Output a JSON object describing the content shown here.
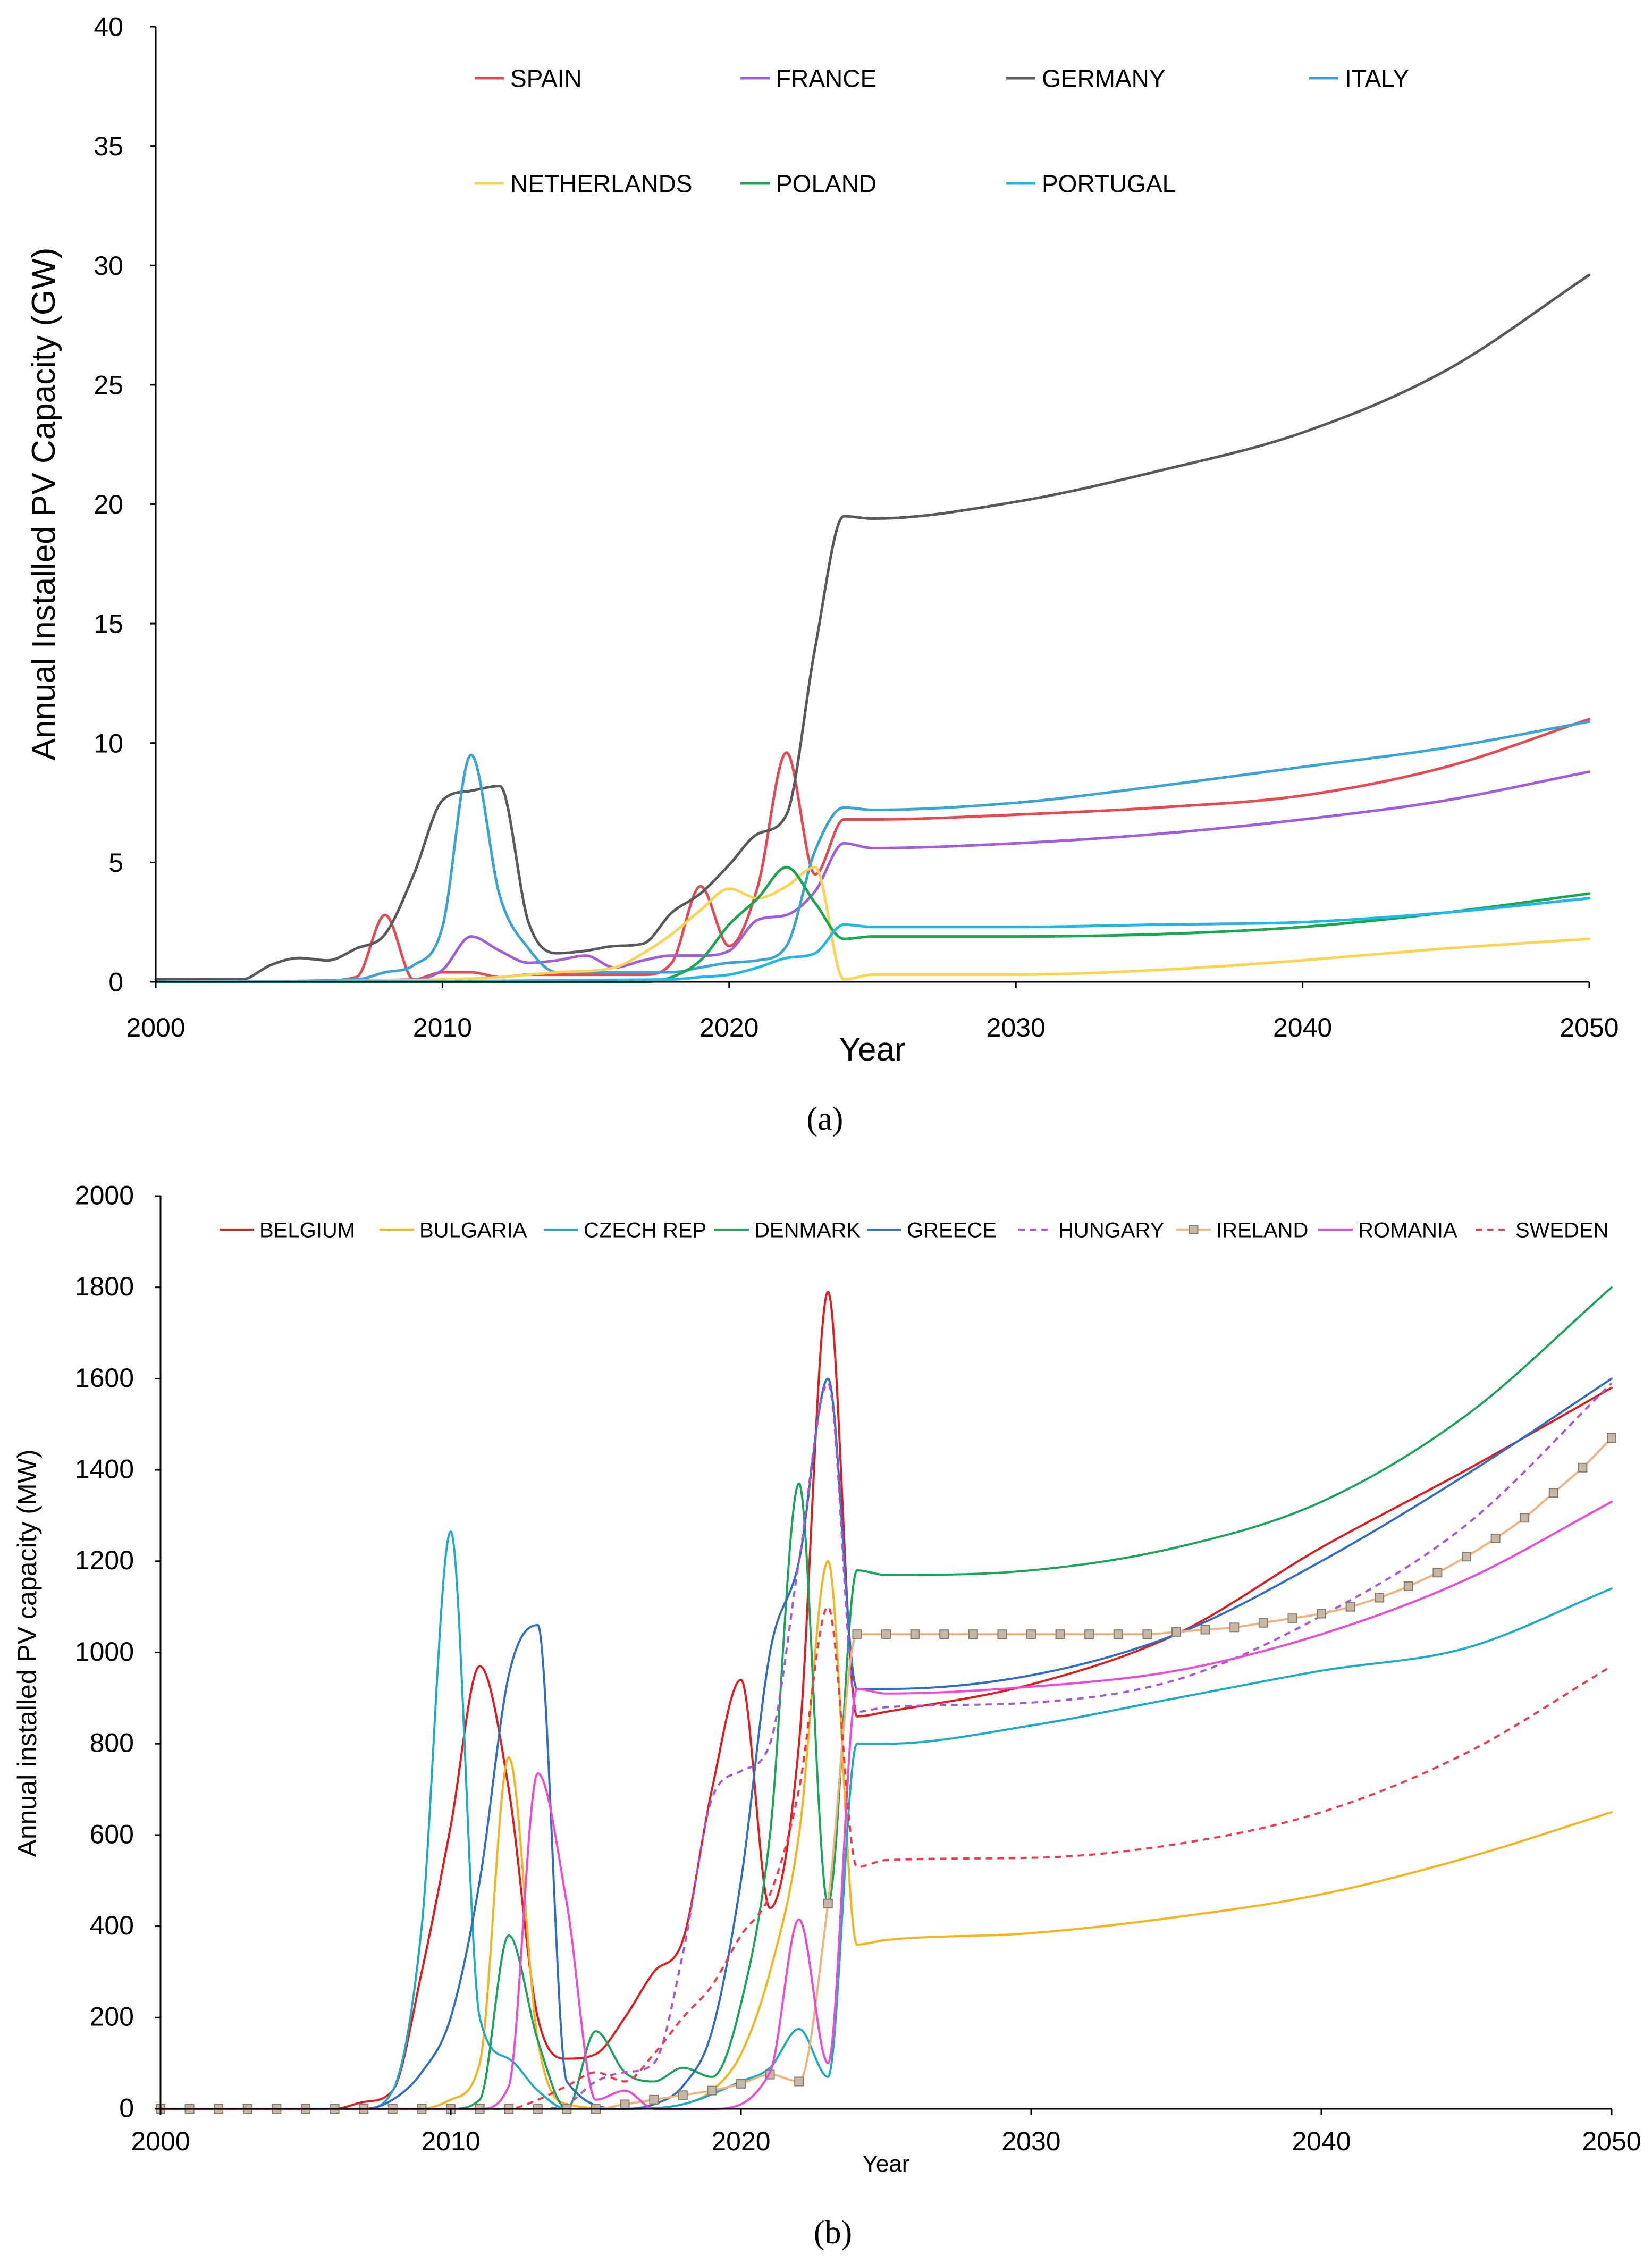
{
  "figure": {
    "caption_a": "(a)",
    "caption_b": "(b)"
  },
  "chart_data": [
    {
      "id": "a",
      "type": "line",
      "title": "",
      "xlabel": "Year",
      "ylabel": "Annual Installed PV Capacity (GW)",
      "xlim": [
        2000,
        2050
      ],
      "ylim": [
        0,
        40
      ],
      "xticks": [
        2000,
        2010,
        2020,
        2030,
        2040,
        2050
      ],
      "yticks": [
        0,
        5,
        10,
        15,
        20,
        25,
        30,
        35,
        40
      ],
      "grid": false,
      "legend_position": "top",
      "series": [
        {
          "name": "SPAIN",
          "color": "#e8484f",
          "dash": "",
          "x": [
            2000,
            2005,
            2007,
            2008,
            2009,
            2010,
            2011,
            2012,
            2013,
            2015,
            2017,
            2018,
            2019,
            2020,
            2021,
            2022,
            2023,
            2024,
            2025,
            2030,
            2035,
            2040,
            2045,
            2050
          ],
          "y": [
            0,
            0,
            0.2,
            2.8,
            0.1,
            0.4,
            0.4,
            0.2,
            0.3,
            0.3,
            0.3,
            0.8,
            4.0,
            1.5,
            4.0,
            9.6,
            4.5,
            6.8,
            6.8,
            7.0,
            7.3,
            7.8,
            9.0,
            11.0
          ]
        },
        {
          "name": "FRANCE",
          "color": "#a25ddc",
          "dash": "",
          "x": [
            2000,
            2009,
            2010,
            2011,
            2012,
            2013,
            2014,
            2015,
            2016,
            2017,
            2018,
            2019,
            2020,
            2021,
            2022,
            2023,
            2024,
            2025,
            2030,
            2035,
            2040,
            2045,
            2050
          ],
          "y": [
            0,
            0.1,
            0.5,
            1.9,
            1.3,
            0.8,
            0.9,
            1.1,
            0.6,
            0.9,
            1.1,
            1.1,
            1.3,
            2.6,
            2.8,
            3.8,
            5.8,
            5.6,
            5.8,
            6.2,
            6.8,
            7.6,
            8.8
          ]
        },
        {
          "name": "GERMANY",
          "color": "#595959",
          "dash": "",
          "x": [
            2000,
            2003,
            2004,
            2005,
            2006,
            2007,
            2008,
            2009,
            2010,
            2011,
            2012,
            2013,
            2014,
            2015,
            2016,
            2017,
            2018,
            2019,
            2020,
            2021,
            2022,
            2023,
            2024,
            2025,
            2030,
            2035,
            2040,
            2045,
            2050
          ],
          "y": [
            0.1,
            0.1,
            0.7,
            1.0,
            0.9,
            1.4,
            2.0,
            4.5,
            7.6,
            8.0,
            8.2,
            2.5,
            1.2,
            1.3,
            1.5,
            1.6,
            2.9,
            3.7,
            4.9,
            6.2,
            7.0,
            14.0,
            19.5,
            19.4,
            20.1,
            21.4,
            23.0,
            25.6,
            29.6
          ]
        },
        {
          "name": "ITALY",
          "color": "#3aa4d6",
          "dash": "",
          "x": [
            2000,
            2007,
            2008,
            2009,
            2010,
            2011,
            2012,
            2013,
            2014,
            2016,
            2018,
            2019,
            2020,
            2021,
            2022,
            2023,
            2024,
            2025,
            2030,
            2035,
            2040,
            2045,
            2050
          ],
          "y": [
            0,
            0.1,
            0.4,
            0.7,
            2.3,
            9.5,
            3.6,
            1.4,
            0.4,
            0.4,
            0.4,
            0.6,
            0.8,
            0.9,
            1.5,
            5.5,
            7.3,
            7.2,
            7.5,
            8.2,
            9.0,
            9.8,
            10.9
          ]
        },
        {
          "name": "NETHERLANDS",
          "color": "#ffd34e",
          "dash": "",
          "x": [
            2000,
            2010,
            2012,
            2014,
            2016,
            2017,
            2018,
            2019,
            2020,
            2021,
            2022,
            2023,
            2024,
            2025,
            2030,
            2035,
            2040,
            2045,
            2050
          ],
          "y": [
            0,
            0.1,
            0.2,
            0.4,
            0.6,
            1.2,
            2.0,
            3.0,
            3.9,
            3.5,
            4.0,
            4.8,
            0.1,
            0.3,
            0.3,
            0.5,
            0.9,
            1.4,
            1.8
          ]
        },
        {
          "name": "POLAND",
          "color": "#18a84f",
          "dash": "",
          "x": [
            2000,
            2017,
            2018,
            2019,
            2020,
            2021,
            2022,
            2023,
            2024,
            2025,
            2030,
            2035,
            2040,
            2045,
            2050
          ],
          "y": [
            0,
            0,
            0.2,
            0.9,
            2.4,
            3.5,
            4.8,
            3.3,
            1.8,
            1.9,
            1.9,
            2.0,
            2.3,
            2.9,
            3.7
          ]
        },
        {
          "name": "PORTUGAL",
          "color": "#1fb8e8",
          "dash": "",
          "x": [
            2000,
            2018,
            2019,
            2020,
            2021,
            2022,
            2023,
            2024,
            2025,
            2030,
            2035,
            2040,
            2045,
            2050
          ],
          "y": [
            0,
            0.1,
            0.2,
            0.3,
            0.6,
            1.0,
            1.2,
            2.4,
            2.3,
            2.3,
            2.4,
            2.5,
            2.9,
            3.5
          ]
        }
      ]
    },
    {
      "id": "b",
      "type": "line",
      "title": "",
      "xlabel": "Year",
      "ylabel": "Annual installed PV capacity (MW)",
      "xlim": [
        2000,
        2050
      ],
      "ylim": [
        0,
        2000
      ],
      "xticks": [
        2000,
        2010,
        2020,
        2030,
        2040,
        2050
      ],
      "yticks": [
        0,
        200,
        400,
        600,
        800,
        1000,
        1200,
        1400,
        1600,
        1800,
        2000
      ],
      "grid": false,
      "legend_position": "top",
      "series": [
        {
          "name": "BELGIUM",
          "color": "#e41a1c",
          "dash": "",
          "x": [
            2000,
            2006,
            2007,
            2008,
            2009,
            2010,
            2011,
            2012,
            2013,
            2014,
            2015,
            2016,
            2017,
            2018,
            2019,
            2020,
            2021,
            2022,
            2023,
            2024,
            2025,
            2030,
            2035,
            2040,
            2045,
            2050
          ],
          "y": [
            0,
            0,
            15,
            40,
            300,
            620,
            970,
            700,
            200,
            110,
            120,
            200,
            300,
            370,
            700,
            940,
            440,
            800,
            1790,
            860,
            870,
            930,
            1040,
            1230,
            1400,
            1580
          ]
        },
        {
          "name": "BULGARIA",
          "color": "#f5b41b",
          "dash": "",
          "x": [
            2000,
            2009,
            2010,
            2011,
            2012,
            2013,
            2014,
            2016,
            2018,
            2019,
            2020,
            2021,
            2022,
            2023,
            2024,
            2025,
            2030,
            2035,
            2040,
            2045,
            2050
          ],
          "y": [
            0,
            0,
            20,
            100,
            770,
            150,
            10,
            0,
            10,
            40,
            120,
            300,
            600,
            1200,
            360,
            370,
            385,
            420,
            470,
            550,
            650
          ]
        },
        {
          "name": "CZECH REP",
          "color": "#1cadc6",
          "dash": "",
          "x": [
            2000,
            2007,
            2008,
            2009,
            2010,
            2011,
            2012,
            2013,
            2014,
            2016,
            2018,
            2020,
            2021,
            2022,
            2023,
            2024,
            2025,
            2030,
            2035,
            2040,
            2045,
            2050
          ],
          "y": [
            0,
            0,
            40,
            400,
            1265,
            200,
            110,
            40,
            0,
            0,
            10,
            60,
            90,
            175,
            70,
            800,
            800,
            840,
            900,
            960,
            1010,
            1140
          ]
        },
        {
          "name": "DENMARK",
          "color": "#19a65a",
          "dash": "",
          "x": [
            2000,
            2010,
            2011,
            2012,
            2013,
            2014,
            2015,
            2016,
            2017,
            2018,
            2019,
            2020,
            2021,
            2022,
            2023,
            2024,
            2025,
            2030,
            2035,
            2040,
            2045,
            2050
          ],
          "y": [
            0,
            0,
            20,
            380,
            150,
            0,
            170,
            80,
            60,
            90,
            70,
            230,
            600,
            1370,
            450,
            1180,
            1170,
            1180,
            1230,
            1330,
            1520,
            1800
          ]
        },
        {
          "name": "GREECE",
          "color": "#2f6fc3",
          "dash": "",
          "x": [
            2000,
            2007,
            2008,
            2009,
            2010,
            2011,
            2012,
            2013,
            2014,
            2016,
            2017,
            2018,
            2019,
            2020,
            2021,
            2022,
            2023,
            2024,
            2025,
            2030,
            2035,
            2040,
            2045,
            2050
          ],
          "y": [
            0,
            0,
            20,
            80,
            200,
            500,
            950,
            1060,
            60,
            0,
            10,
            50,
            170,
            500,
            1000,
            1200,
            1600,
            920,
            920,
            950,
            1040,
            1200,
            1390,
            1600
          ]
        },
        {
          "name": "HUNGARY",
          "color": "#a855d8",
          "dash": "5,4",
          "x": [
            2000,
            2013,
            2014,
            2015,
            2016,
            2017,
            2018,
            2019,
            2020,
            2021,
            2022,
            2023,
            2024,
            2025,
            2030,
            2035,
            2040,
            2045,
            2050
          ],
          "y": [
            0,
            0,
            10,
            60,
            80,
            100,
            340,
            680,
            740,
            800,
            1200,
            1590,
            870,
            880,
            890,
            940,
            1080,
            1280,
            1590
          ]
        },
        {
          "name": "IRELAND",
          "color": "#f2b27e",
          "dash": "",
          "marker": "square",
          "x": [
            2000,
            2001,
            2002,
            2003,
            2004,
            2005,
            2006,
            2007,
            2008,
            2009,
            2010,
            2011,
            2012,
            2013,
            2014,
            2015,
            2016,
            2017,
            2018,
            2019,
            2020,
            2021,
            2022,
            2023,
            2024,
            2025,
            2026,
            2027,
            2028,
            2029,
            2030,
            2031,
            2032,
            2033,
            2034,
            2035,
            2036,
            2037,
            2038,
            2039,
            2040,
            2041,
            2042,
            2043,
            2044,
            2045,
            2046,
            2047,
            2048,
            2049,
            2050
          ],
          "y": [
            0,
            0,
            0,
            0,
            0,
            0,
            0,
            0,
            0,
            0,
            0,
            0,
            0,
            0,
            0,
            0,
            10,
            20,
            30,
            40,
            55,
            75,
            60,
            450,
            1040,
            1040,
            1040,
            1040,
            1040,
            1040,
            1040,
            1040,
            1040,
            1040,
            1040,
            1045,
            1050,
            1055,
            1065,
            1075,
            1085,
            1100,
            1120,
            1145,
            1175,
            1210,
            1250,
            1295,
            1350,
            1405,
            1470
          ]
        },
        {
          "name": "ROMANIA",
          "color": "#ee4ad8",
          "dash": "",
          "x": [
            2000,
            2011,
            2012,
            2013,
            2014,
            2015,
            2016,
            2017,
            2019,
            2021,
            2022,
            2023,
            2024,
            2025,
            2030,
            2035,
            2040,
            2045,
            2050
          ],
          "y": [
            0,
            0,
            50,
            735,
            450,
            20,
            40,
            0,
            0,
            80,
            415,
            100,
            920,
            910,
            925,
            960,
            1040,
            1160,
            1330
          ]
        },
        {
          "name": "SWEDEN",
          "color": "#f2394a",
          "dash": "5,4",
          "x": [
            2000,
            2012,
            2013,
            2014,
            2015,
            2016,
            2017,
            2018,
            2019,
            2020,
            2021,
            2022,
            2023,
            2024,
            2025,
            2030,
            2035,
            2040,
            2045,
            2050
          ],
          "y": [
            0,
            0,
            20,
            50,
            80,
            60,
            120,
            200,
            270,
            380,
            470,
            700,
            1100,
            530,
            545,
            550,
            580,
            650,
            780,
            970
          ]
        }
      ]
    }
  ]
}
